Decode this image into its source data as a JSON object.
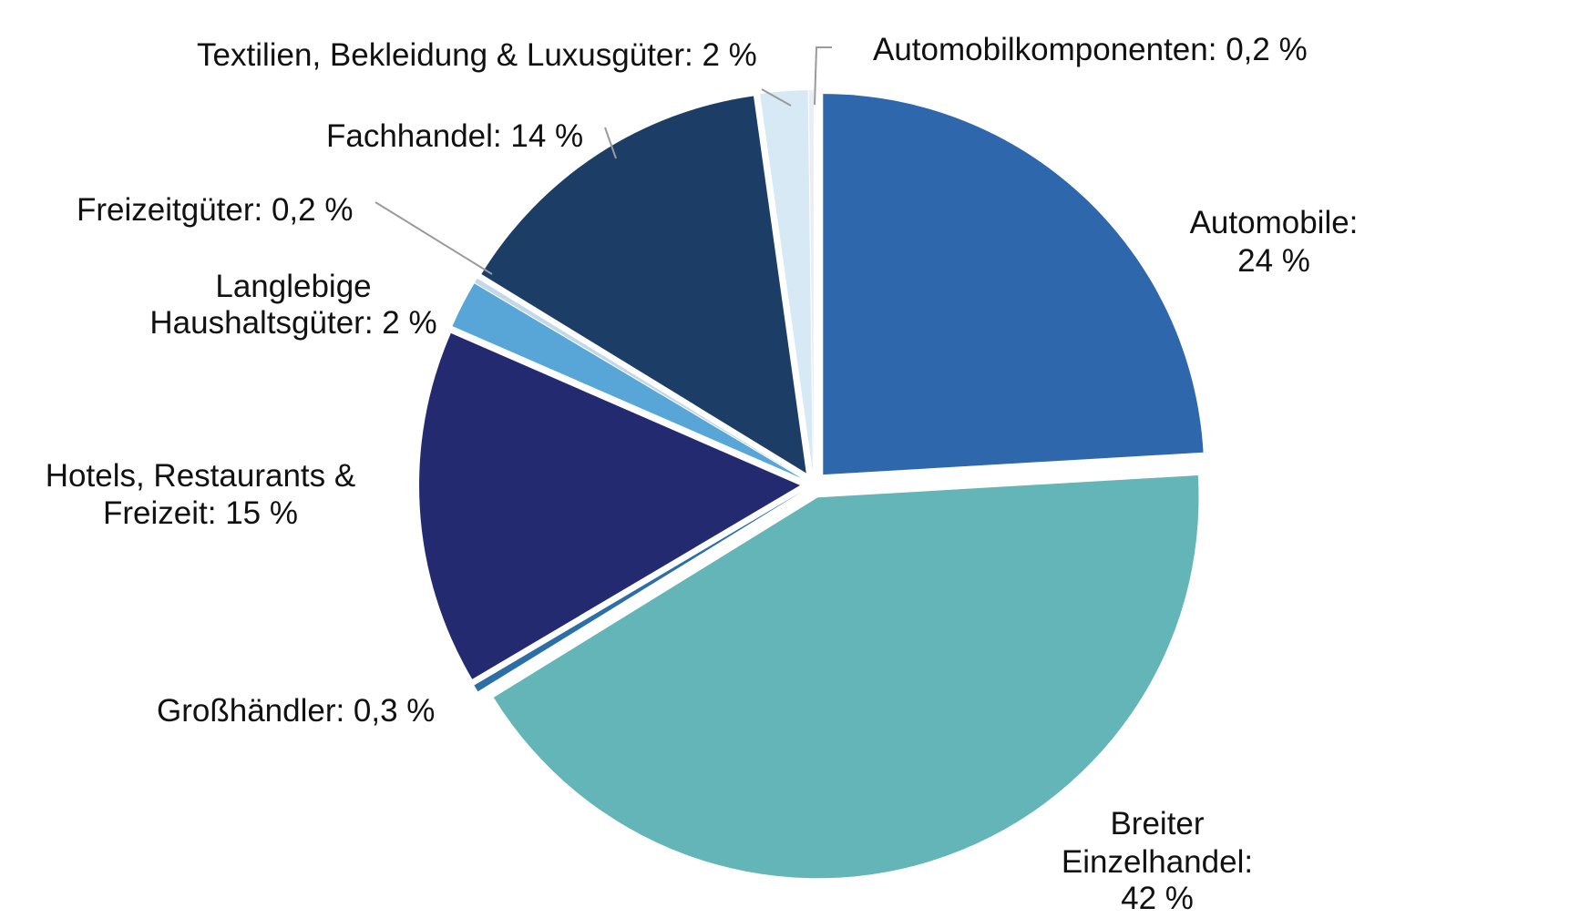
{
  "chart_data": {
    "type": "pie",
    "title": "",
    "series": [
      {
        "name": "Automobile:",
        "name_line2": "24 %",
        "value": 24,
        "color": "#2e67ab"
      },
      {
        "name": "Breiter",
        "name_line2": "Einzelhandel:",
        "name_line3": "42 %",
        "value": 42,
        "color": "#63b5b8"
      },
      {
        "name": "Großhändler: 0,3 %",
        "value": 0.3,
        "color": "#2b6fa6"
      },
      {
        "name": "Hotels, Restaurants &",
        "name_line2": "Freizeit: 15 %",
        "value": 15,
        "color": "#232a70"
      },
      {
        "name": "Langlebige",
        "name_line2": "Haushaltsgüter: 2 %",
        "value": 2,
        "color": "#58a6d8"
      },
      {
        "name": "Freizeitgüter: 0,2 %",
        "value": 0.2,
        "color": "#c3d8ea"
      },
      {
        "name": "Fachhandel: 14 %",
        "value": 14,
        "color": "#1b3d66"
      },
      {
        "name": "Textilien, Bekleidung & Luxusgüter: 2 %",
        "value": 2,
        "color": "#d6e9f4"
      },
      {
        "name": "Automobilkomponenten: 0,2 %",
        "value": 0.2,
        "color": "#e9eef3"
      }
    ]
  }
}
